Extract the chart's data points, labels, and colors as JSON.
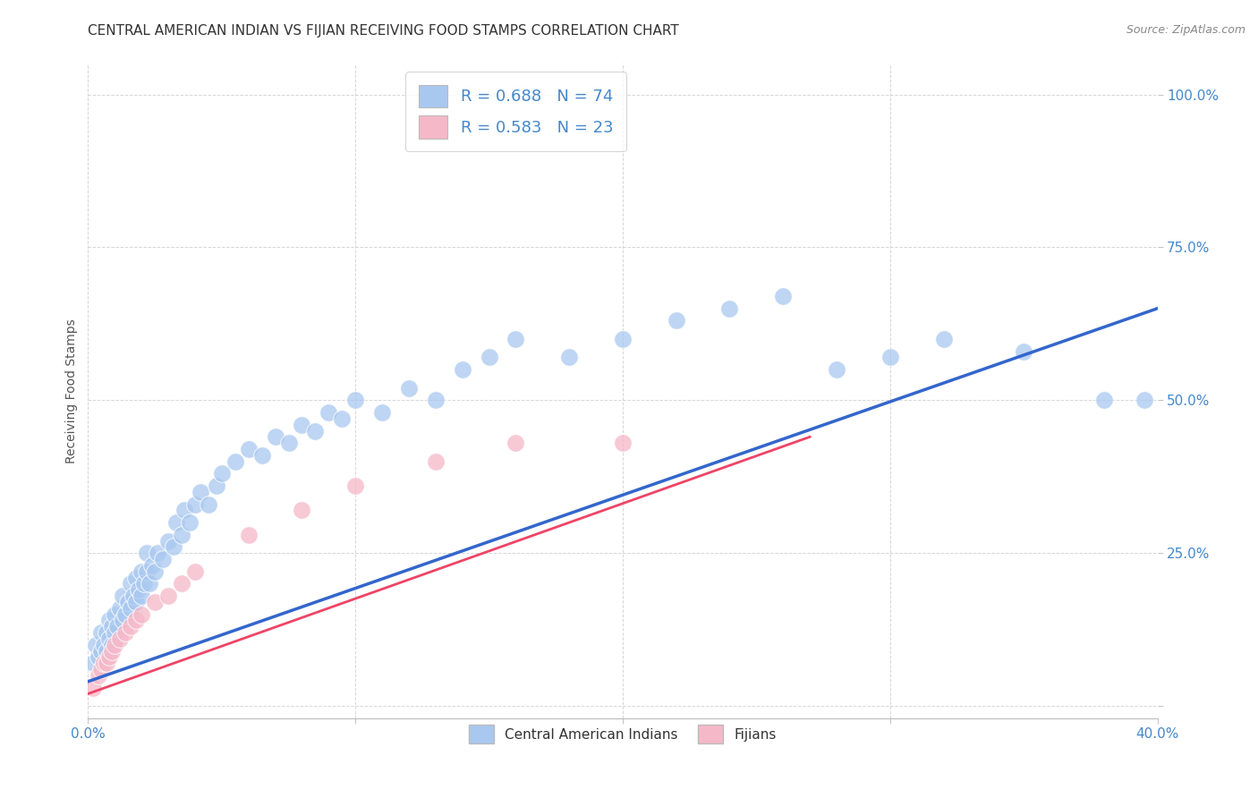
{
  "title": "CENTRAL AMERICAN INDIAN VS FIJIAN RECEIVING FOOD STAMPS CORRELATION CHART",
  "source": "Source: ZipAtlas.com",
  "ylabel": "Receiving Food Stamps",
  "xlim": [
    0.0,
    0.4
  ],
  "ylim": [
    -0.02,
    1.05
  ],
  "xticks": [
    0.0,
    0.1,
    0.2,
    0.3,
    0.4
  ],
  "xtick_labels_show": [
    "0.0%",
    "",
    "",
    "",
    "40.0%"
  ],
  "yticks": [
    0.0,
    0.25,
    0.5,
    0.75,
    1.0
  ],
  "ytick_labels": [
    "",
    "25.0%",
    "50.0%",
    "75.0%",
    "100.0%"
  ],
  "blue_R": 0.688,
  "blue_N": 74,
  "pink_R": 0.583,
  "pink_N": 23,
  "blue_color": "#a8c8f0",
  "pink_color": "#f5b8c8",
  "blue_line_color": "#3366cc",
  "pink_line_color": "#ee4466",
  "legend_label_blue": "Central American Indians",
  "legend_label_pink": "Fijians",
  "background_color": "#ffffff",
  "grid_color": "#cccccc",
  "title_fontsize": 11,
  "label_fontsize": 10,
  "tick_fontsize": 11,
  "tick_color": "#4488cc",
  "blue_x": [
    0.002,
    0.003,
    0.004,
    0.005,
    0.005,
    0.006,
    0.007,
    0.007,
    0.008,
    0.008,
    0.009,
    0.009,
    0.01,
    0.01,
    0.011,
    0.012,
    0.013,
    0.013,
    0.014,
    0.015,
    0.016,
    0.016,
    0.017,
    0.018,
    0.018,
    0.019,
    0.02,
    0.02,
    0.021,
    0.022,
    0.022,
    0.023,
    0.024,
    0.025,
    0.026,
    0.028,
    0.03,
    0.032,
    0.033,
    0.035,
    0.036,
    0.038,
    0.04,
    0.042,
    0.045,
    0.048,
    0.05,
    0.055,
    0.06,
    0.065,
    0.07,
    0.075,
    0.08,
    0.085,
    0.09,
    0.095,
    0.1,
    0.11,
    0.12,
    0.13,
    0.14,
    0.15,
    0.16,
    0.18,
    0.2,
    0.22,
    0.24,
    0.26,
    0.28,
    0.3,
    0.32,
    0.35,
    0.38,
    0.395
  ],
  "blue_y": [
    0.07,
    0.1,
    0.08,
    0.09,
    0.12,
    0.1,
    0.09,
    0.12,
    0.11,
    0.14,
    0.1,
    0.13,
    0.12,
    0.15,
    0.13,
    0.16,
    0.14,
    0.18,
    0.15,
    0.17,
    0.16,
    0.2,
    0.18,
    0.17,
    0.21,
    0.19,
    0.18,
    0.22,
    0.2,
    0.22,
    0.25,
    0.2,
    0.23,
    0.22,
    0.25,
    0.24,
    0.27,
    0.26,
    0.3,
    0.28,
    0.32,
    0.3,
    0.33,
    0.35,
    0.33,
    0.36,
    0.38,
    0.4,
    0.42,
    0.41,
    0.44,
    0.43,
    0.46,
    0.45,
    0.48,
    0.47,
    0.5,
    0.48,
    0.52,
    0.5,
    0.55,
    0.57,
    0.6,
    0.57,
    0.6,
    0.63,
    0.65,
    0.67,
    0.55,
    0.57,
    0.6,
    0.58,
    0.5,
    0.5
  ],
  "pink_x": [
    0.002,
    0.004,
    0.005,
    0.006,
    0.007,
    0.008,
    0.009,
    0.01,
    0.012,
    0.014,
    0.016,
    0.018,
    0.02,
    0.025,
    0.03,
    0.035,
    0.04,
    0.06,
    0.08,
    0.1,
    0.13,
    0.16,
    0.2
  ],
  "pink_y": [
    0.03,
    0.05,
    0.06,
    0.07,
    0.07,
    0.08,
    0.09,
    0.1,
    0.11,
    0.12,
    0.13,
    0.14,
    0.15,
    0.17,
    0.18,
    0.2,
    0.22,
    0.28,
    0.32,
    0.36,
    0.4,
    0.43,
    0.43
  ],
  "blue_line_x0": 0.0,
  "blue_line_y0": 0.04,
  "blue_line_x1": 0.4,
  "blue_line_y1": 0.65,
  "pink_line_x0": 0.0,
  "pink_line_y0": 0.02,
  "pink_line_x1": 0.27,
  "pink_line_y1": 0.44
}
